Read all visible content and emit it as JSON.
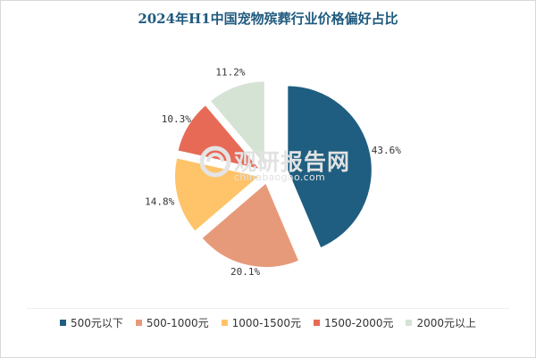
{
  "chart_data": {
    "type": "pie",
    "title": "2024年H1中国宠物殡葬行业价格偏好占比",
    "categories": [
      "500元以下",
      "500-1000元",
      "1000-1500元",
      "1500-2000元",
      "2000元以上"
    ],
    "values": [
      43.6,
      20.1,
      14.8,
      10.3,
      11.2
    ],
    "labels": [
      "43.6%",
      "20.1%",
      "14.8%",
      "10.3%",
      "11.2%"
    ],
    "colors": [
      "#1f5e80",
      "#e79a7a",
      "#ffc36a",
      "#e76a57",
      "#d5e3d4"
    ],
    "legend_position": "bottom",
    "exploded": true
  },
  "watermark": {
    "text": "观研报告网",
    "subtext": "chinabaogao.com"
  }
}
